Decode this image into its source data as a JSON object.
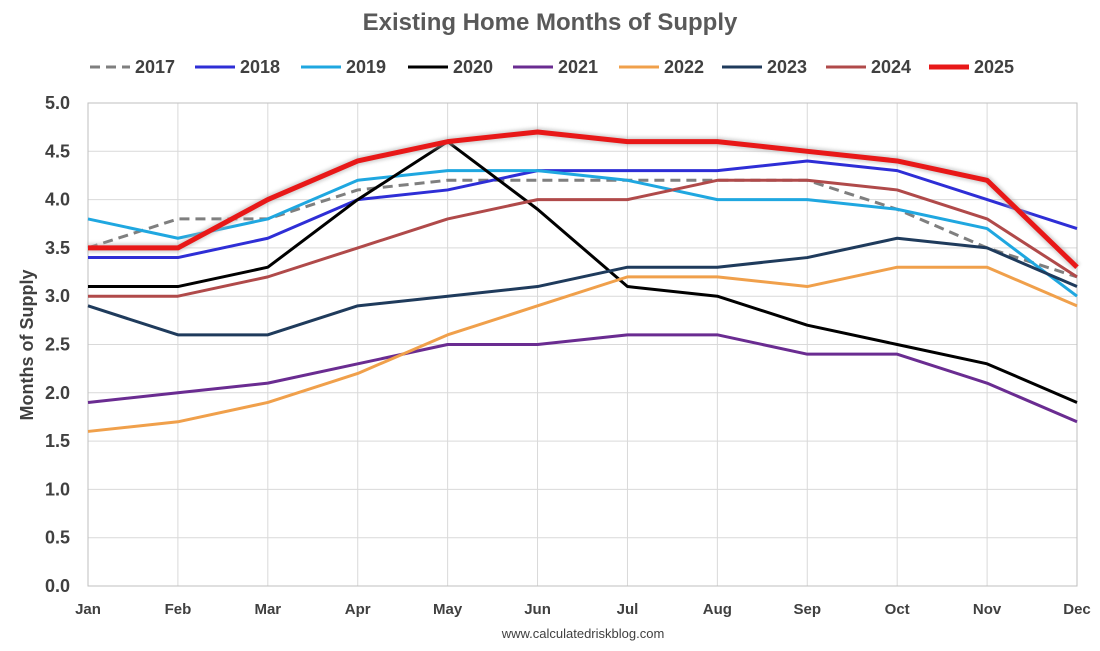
{
  "chart_data": {
    "type": "line",
    "title": "Existing Home Months of Supply",
    "xlabel": "",
    "ylabel": "Months of Supply",
    "source": "www.calculatedriskblog.com",
    "categories": [
      "Jan",
      "Feb",
      "Mar",
      "Apr",
      "May",
      "Jun",
      "Jul",
      "Aug",
      "Sep",
      "Oct",
      "Nov",
      "Dec"
    ],
    "ylim": [
      0,
      5
    ],
    "yticks": [
      "0.0",
      "0.5",
      "1.0",
      "1.5",
      "2.0",
      "2.5",
      "3.0",
      "3.5",
      "4.0",
      "4.5",
      "5.0"
    ],
    "grid": true,
    "legend_position": "top",
    "series": [
      {
        "name": "2017",
        "color": "#7f7f7f",
        "style": "dashed",
        "values": [
          3.5,
          3.8,
          3.8,
          4.1,
          4.2,
          4.2,
          4.2,
          4.2,
          4.2,
          3.9,
          3.5,
          3.2
        ]
      },
      {
        "name": "2018",
        "color": "#2e2ed6",
        "style": "solid",
        "values": [
          3.4,
          3.4,
          3.6,
          4.0,
          4.1,
          4.3,
          4.3,
          4.3,
          4.4,
          4.3,
          4.0,
          3.7
        ]
      },
      {
        "name": "2019",
        "color": "#1fa7e0",
        "style": "solid",
        "values": [
          3.8,
          3.6,
          3.8,
          4.2,
          4.3,
          4.3,
          4.2,
          4.0,
          4.0,
          3.9,
          3.7,
          3.0
        ]
      },
      {
        "name": "2020",
        "color": "#000000",
        "style": "solid",
        "values": [
          3.1,
          3.1,
          3.3,
          4.0,
          4.6,
          3.9,
          3.1,
          3.0,
          2.7,
          2.5,
          2.3,
          1.9
        ]
      },
      {
        "name": "2021",
        "color": "#6a2c91",
        "style": "solid",
        "values": [
          1.9,
          2.0,
          2.1,
          2.3,
          2.5,
          2.5,
          2.6,
          2.6,
          2.4,
          2.4,
          2.1,
          1.7
        ]
      },
      {
        "name": "2022",
        "color": "#f0a04b",
        "style": "solid",
        "values": [
          1.6,
          1.7,
          1.9,
          2.2,
          2.6,
          2.9,
          3.2,
          3.2,
          3.1,
          3.3,
          3.3,
          2.9
        ]
      },
      {
        "name": "2023",
        "color": "#1f3b5c",
        "style": "solid",
        "values": [
          2.9,
          2.6,
          2.6,
          2.9,
          3.0,
          3.1,
          3.3,
          3.3,
          3.4,
          3.6,
          3.5,
          3.1
        ]
      },
      {
        "name": "2024",
        "color": "#b04a4a",
        "style": "solid",
        "values": [
          3.0,
          3.0,
          3.2,
          3.5,
          3.8,
          4.0,
          4.0,
          4.2,
          4.2,
          4.1,
          3.8,
          3.2
        ]
      },
      {
        "name": "2025",
        "color": "#e81818",
        "style": "bold",
        "values": [
          3.5,
          3.5,
          4.0,
          4.4,
          4.6,
          4.7,
          4.6,
          4.6,
          4.5,
          4.4,
          4.2,
          3.3
        ]
      }
    ]
  }
}
